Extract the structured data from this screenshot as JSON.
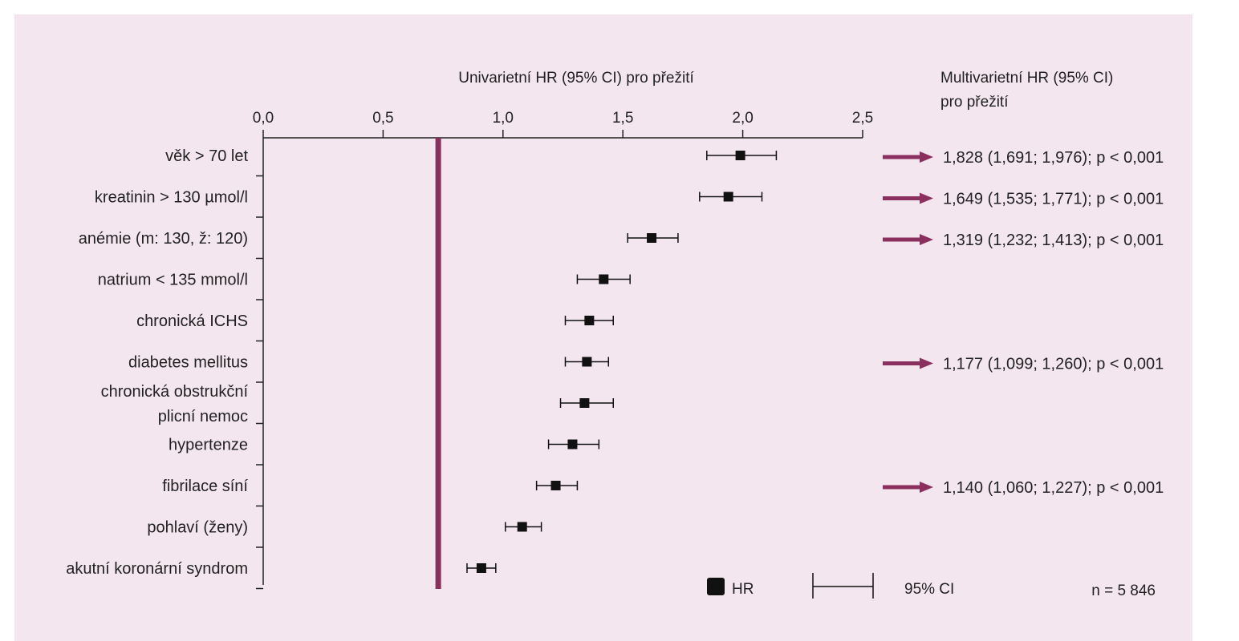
{
  "chart_data": {
    "type": "forest",
    "title": "Univarietní HR (95% CI) pro přežití",
    "right_title_lines": [
      "Multivarietní HR (95% CI)",
      "pro přežití"
    ],
    "x_ticks": [
      "0,0",
      "0,5",
      "1,0",
      "1,5",
      "2,0",
      "2,5"
    ],
    "x_tick_values": [
      0,
      0.5,
      1.0,
      1.5,
      2.0,
      2.5
    ],
    "xlim": [
      0,
      2.5
    ],
    "reference_line": 0.73,
    "rows": [
      {
        "label_lines": [
          "věk > 70 let"
        ],
        "hr": 1.99,
        "lo": 1.85,
        "hi": 2.14,
        "multivariate": "1,828 (1,691; 1,976); p < 0,001"
      },
      {
        "label_lines": [
          "kreatinin > 130 µmol/l"
        ],
        "hr": 1.94,
        "lo": 1.82,
        "hi": 2.08,
        "multivariate": "1,649 (1,535; 1,771); p < 0,001"
      },
      {
        "label_lines": [
          "anémie (m: 130, ž: 120)"
        ],
        "hr": 1.62,
        "lo": 1.52,
        "hi": 1.73,
        "multivariate": "1,319 (1,232; 1,413); p < 0,001"
      },
      {
        "label_lines": [
          "natrium < 135 mmol/l"
        ],
        "hr": 1.42,
        "lo": 1.31,
        "hi": 1.53,
        "multivariate": ""
      },
      {
        "label_lines": [
          "chronická ICHS"
        ],
        "hr": 1.36,
        "lo": 1.26,
        "hi": 1.46,
        "multivariate": ""
      },
      {
        "label_lines": [
          "diabetes mellitus"
        ],
        "hr": 1.35,
        "lo": 1.26,
        "hi": 1.44,
        "multivariate": "1,177 (1,099; 1,260); p < 0,001"
      },
      {
        "label_lines": [
          "chronická obstrukční",
          "plicní nemoc"
        ],
        "hr": 1.34,
        "lo": 1.24,
        "hi": 1.46,
        "multivariate": ""
      },
      {
        "label_lines": [
          "hypertenze"
        ],
        "hr": 1.29,
        "lo": 1.19,
        "hi": 1.4,
        "multivariate": ""
      },
      {
        "label_lines": [
          "fibrilace síní"
        ],
        "hr": 1.22,
        "lo": 1.14,
        "hi": 1.31,
        "multivariate": "1,140 (1,060; 1,227); p < 0,001"
      },
      {
        "label_lines": [
          "pohlaví (ženy)"
        ],
        "hr": 1.08,
        "lo": 1.01,
        "hi": 1.16,
        "multivariate": ""
      },
      {
        "label_lines": [
          "akutní koronární syndrom"
        ],
        "hr": 0.91,
        "lo": 0.85,
        "hi": 0.97,
        "multivariate": ""
      }
    ],
    "legend": {
      "marker_label": "HR",
      "ci_label": "95% CI",
      "n_label": "n = 5 846"
    },
    "colors": {
      "accent": "#8b2f5e",
      "background": "#f3e6ef",
      "marker": "#111111"
    }
  }
}
